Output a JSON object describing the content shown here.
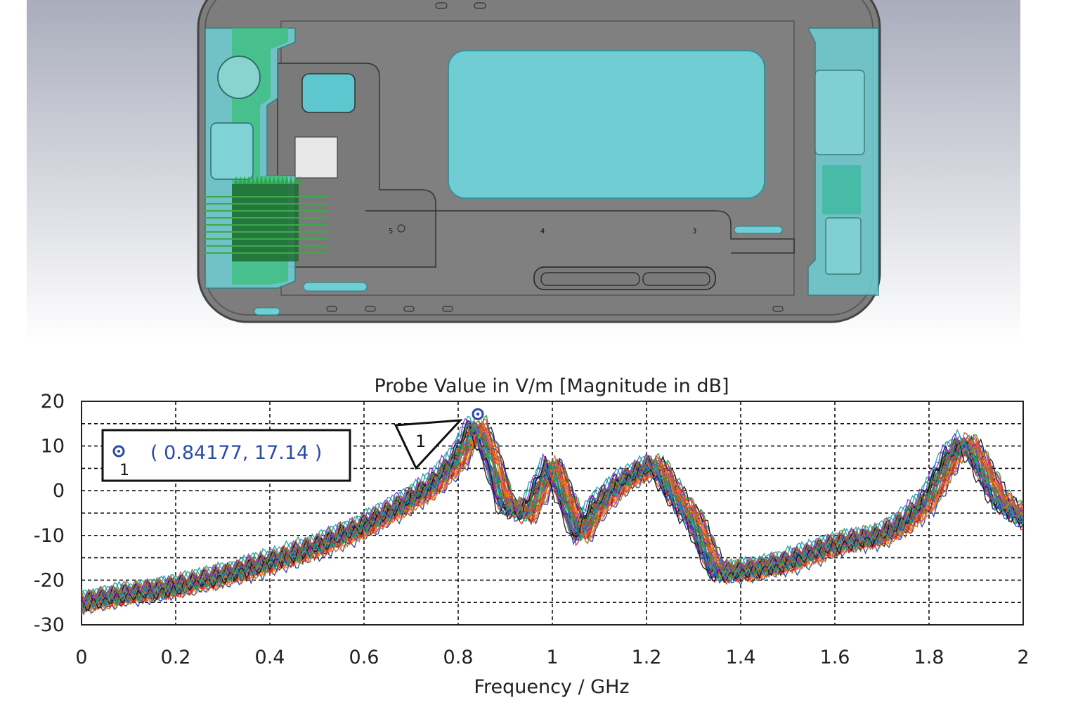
{
  "model_view": {
    "port_labels": [
      "5",
      "4",
      "3"
    ],
    "colors": {
      "background_top": "#a9adbc",
      "background_bottom": "#ffffff",
      "frame": "#8a8a8a",
      "frame_dark": "#4a4a4a",
      "cyan_part": "#6fcfd4",
      "green_part": "#3bbf7a",
      "probe_array": "#2a8a3a"
    }
  },
  "chart_data": {
    "type": "line",
    "title": "Probe Value in V/m [Magnitude in dB]",
    "xlabel": "Frequency / GHz",
    "ylabel": "",
    "xlim": [
      0,
      2
    ],
    "ylim": [
      -30,
      20
    ],
    "x_ticks": [
      "0",
      "0.2",
      "0.4",
      "0.6",
      "0.8",
      "1",
      "1.2",
      "1.4",
      "1.6",
      "1.8",
      "2"
    ],
    "y_ticks": [
      "20",
      "10",
      "0",
      "-10",
      "-20",
      "-30"
    ],
    "grid": true,
    "grid_style": "dashed",
    "series_count": 40,
    "series_colors": [
      "#e8282a",
      "#1f9a3a",
      "#1b3fa8",
      "#f07a18",
      "#111111",
      "#8a2be2",
      "#19a0a0",
      "#9a6b2a"
    ],
    "envelope": {
      "x": [
        0,
        0.1,
        0.2,
        0.3,
        0.4,
        0.5,
        0.6,
        0.7,
        0.75,
        0.8,
        0.84,
        0.87,
        0.9,
        0.95,
        1.0,
        1.03,
        1.06,
        1.1,
        1.15,
        1.2,
        1.22,
        1.25,
        1.28,
        1.3,
        1.32,
        1.35,
        1.4,
        1.5,
        1.6,
        1.7,
        1.75,
        1.8,
        1.85,
        1.88,
        1.9,
        1.95,
        2.0
      ],
      "y": [
        -25,
        -23,
        -21.5,
        -19,
        -16,
        -12.5,
        -8,
        -2,
        1.5,
        7,
        15,
        8,
        -3,
        -5,
        6,
        -2,
        -10,
        -3,
        2,
        5,
        6,
        1,
        -4,
        -6,
        -11,
        -18,
        -18,
        -16,
        -12,
        -10,
        -7,
        -2,
        8,
        11,
        8,
        -2,
        -6
      ]
    },
    "marker": {
      "label": "1",
      "x": 0.84177,
      "y": 17.14,
      "readout": "( 0.84177, 17.14 )"
    }
  }
}
